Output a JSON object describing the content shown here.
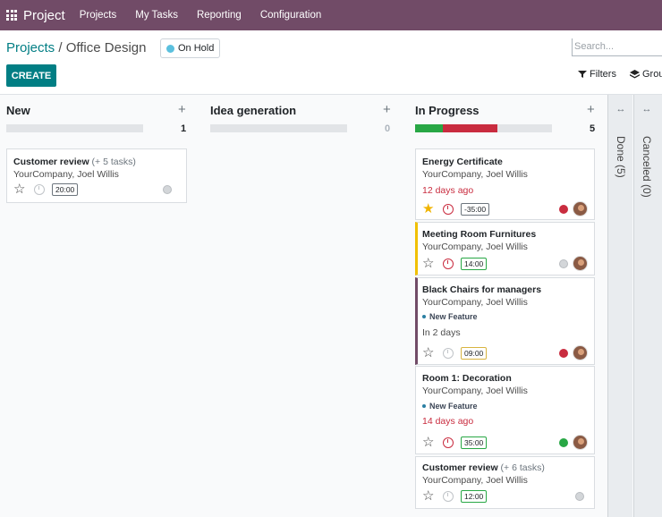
{
  "navbar": {
    "app_name": "Project",
    "menu": [
      "Projects",
      "My Tasks",
      "Reporting",
      "Configuration"
    ]
  },
  "control": {
    "breadcrumb_root": "Projects",
    "breadcrumb_sep": " / ",
    "breadcrumb_current": "Office Design",
    "status_label": "On Hold",
    "search_placeholder": "Search...",
    "create_label": "CREATE",
    "filters_label": "Filters",
    "groupby_label": "Grou"
  },
  "columns": [
    {
      "name": "New",
      "count": "1"
    },
    {
      "name": "Idea generation",
      "count": "0"
    },
    {
      "name": "In Progress",
      "count": "5"
    }
  ],
  "folded": [
    {
      "label": "Done (5)"
    },
    {
      "label": "Canceled (0)"
    }
  ],
  "new_cards": [
    {
      "title": "Customer review",
      "extra": "(+ 5 tasks)",
      "sub": "YourCompany, Joel Willis",
      "time": "20:00"
    }
  ],
  "progress_cards": [
    {
      "title": "Energy Certificate",
      "sub": "YourCompany, Joel Willis",
      "deadline": "12 days ago",
      "time": "-35:00"
    },
    {
      "title": "Meeting Room Furnitures",
      "sub": "YourCompany, Joel Willis",
      "time": "14:00"
    },
    {
      "title": "Black Chairs for managers",
      "sub": "YourCompany, Joel Willis",
      "tag": "New Feature",
      "deadline": "In 2 days",
      "time": "09:00"
    },
    {
      "title": "Room 1: Decoration",
      "sub": "YourCompany, Joel Willis",
      "tag": "New Feature",
      "deadline": "14 days ago",
      "time": "35:00"
    },
    {
      "title": "Customer review",
      "extra": "(+ 6 tasks)",
      "sub": "YourCompany, Joel Willis",
      "time": "12:00"
    }
  ],
  "colors": {
    "navbar": "#714b67",
    "primary": "#017e84",
    "danger": "#c92c3f",
    "success": "#28a745",
    "warning": "#f0c000",
    "purple": "#714b67"
  }
}
